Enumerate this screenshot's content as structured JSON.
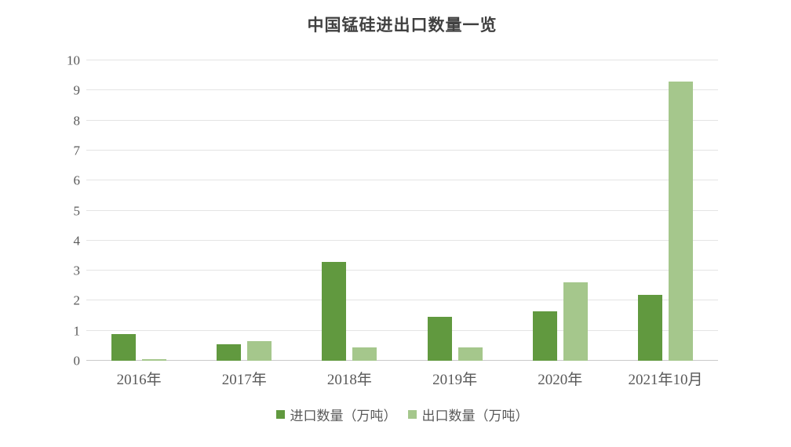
{
  "chart_data": {
    "type": "bar",
    "title": "中国锰硅进出口数量一览",
    "categories": [
      "2016年",
      "2017年",
      "2018年",
      "2019年",
      "2020年",
      "2021年10月"
    ],
    "series": [
      {
        "name": "进口数量（万吨）",
        "color": "#61993f",
        "values": [
          0.9,
          0.55,
          3.3,
          1.45,
          1.65,
          2.2
        ]
      },
      {
        "name": "出口数量（万吨）",
        "color": "#a5c78c",
        "values": [
          0.05,
          0.65,
          0.45,
          0.45,
          2.6,
          9.3
        ]
      }
    ],
    "xlabel": "",
    "ylabel": "",
    "ylim": [
      0,
      10
    ],
    "ytick_step": 1,
    "grid": "horizontal",
    "gridline_color": "#e4e4e4",
    "axis_line_color": "#c9c9c9",
    "text_color": "#595959",
    "title_color": "#404040",
    "legend_position": "bottom"
  }
}
